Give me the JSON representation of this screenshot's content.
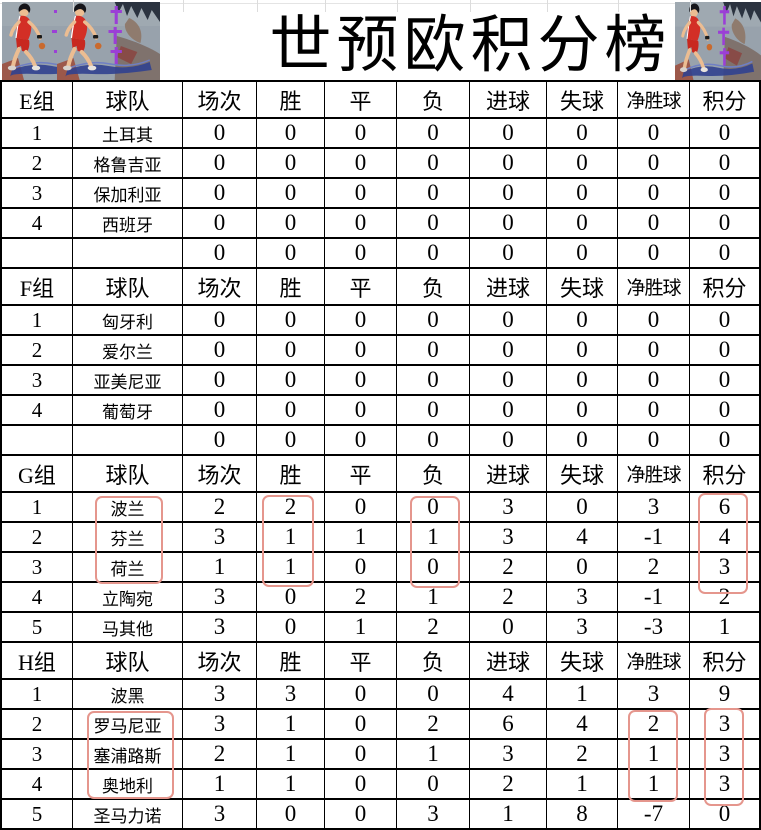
{
  "title": "世预欧积分榜",
  "colors": {
    "highlight": "#e5968d",
    "grid": "#000000"
  },
  "art": {
    "description": "slam-dunk-basketball-player-art",
    "left_copies": 2,
    "right_copies": 1
  },
  "table": {
    "column_headers": [
      "球队",
      "场次",
      "胜",
      "平",
      "负",
      "进球",
      "失球",
      "净胜球",
      "积分"
    ],
    "sections": [
      {
        "group": "E组",
        "rows": [
          [
            "1",
            "土耳其",
            "0",
            "0",
            "0",
            "0",
            "0",
            "0",
            "0",
            "0"
          ],
          [
            "2",
            "格鲁吉亚",
            "0",
            "0",
            "0",
            "0",
            "0",
            "0",
            "0",
            "0"
          ],
          [
            "3",
            "保加利亚",
            "0",
            "0",
            "0",
            "0",
            "0",
            "0",
            "0",
            "0"
          ],
          [
            "4",
            "西班牙",
            "0",
            "0",
            "0",
            "0",
            "0",
            "0",
            "0",
            "0"
          ]
        ],
        "summary_row": [
          "0",
          "0",
          "0",
          "0",
          "0",
          "0",
          "0",
          "0"
        ]
      },
      {
        "group": "F组",
        "rows": [
          [
            "1",
            "匈牙利",
            "0",
            "0",
            "0",
            "0",
            "0",
            "0",
            "0",
            "0"
          ],
          [
            "2",
            "爱尔兰",
            "0",
            "0",
            "0",
            "0",
            "0",
            "0",
            "0",
            "0"
          ],
          [
            "3",
            "亚美尼亚",
            "0",
            "0",
            "0",
            "0",
            "0",
            "0",
            "0",
            "0"
          ],
          [
            "4",
            "葡萄牙",
            "0",
            "0",
            "0",
            "0",
            "0",
            "0",
            "0",
            "0"
          ]
        ],
        "summary_row": [
          "0",
          "0",
          "0",
          "0",
          "0",
          "0",
          "0",
          "0"
        ]
      },
      {
        "group": "G组",
        "rows": [
          [
            "1",
            "波兰",
            "2",
            "2",
            "0",
            "0",
            "3",
            "0",
            "3",
            "6"
          ],
          [
            "2",
            "芬兰",
            "3",
            "1",
            "1",
            "1",
            "3",
            "4",
            "-1",
            "4"
          ],
          [
            "3",
            "荷兰",
            "1",
            "1",
            "0",
            "0",
            "2",
            "0",
            "2",
            "3"
          ],
          [
            "4",
            "立陶宛",
            "3",
            "0",
            "2",
            "1",
            "2",
            "3",
            "-1",
            "2"
          ],
          [
            "5",
            "马其他",
            "3",
            "0",
            "1",
            "2",
            "0",
            "3",
            "-3",
            "1"
          ]
        ]
      },
      {
        "group": "H组",
        "rows": [
          [
            "1",
            "波黑",
            "3",
            "3",
            "0",
            "0",
            "4",
            "1",
            "3",
            "9"
          ],
          [
            "2",
            "罗马尼亚",
            "3",
            "1",
            "0",
            "2",
            "6",
            "4",
            "2",
            "3"
          ],
          [
            "3",
            "塞浦路斯",
            "2",
            "1",
            "0",
            "1",
            "3",
            "2",
            "1",
            "3"
          ],
          [
            "4",
            "奥地利",
            "1",
            "1",
            "0",
            "0",
            "2",
            "1",
            "1",
            "3"
          ],
          [
            "5",
            "圣马力诺",
            "3",
            "0",
            "0",
            "3",
            "1",
            "8",
            "-7",
            "0"
          ]
        ]
      }
    ]
  },
  "highlights": [
    {
      "section": "G组",
      "column": "球队",
      "rows": "1-3"
    },
    {
      "section": "G组",
      "column": "胜",
      "rows": "1-3"
    },
    {
      "section": "G组",
      "column": "负",
      "rows": "1-3"
    },
    {
      "section": "G组",
      "column": "积分",
      "rows": "1-3"
    },
    {
      "section": "H组",
      "column": "球队",
      "rows": "2-4"
    },
    {
      "section": "H组",
      "column": "净胜球",
      "rows": "2-4"
    },
    {
      "section": "H组",
      "column": "积分",
      "rows": "2-4"
    }
  ]
}
